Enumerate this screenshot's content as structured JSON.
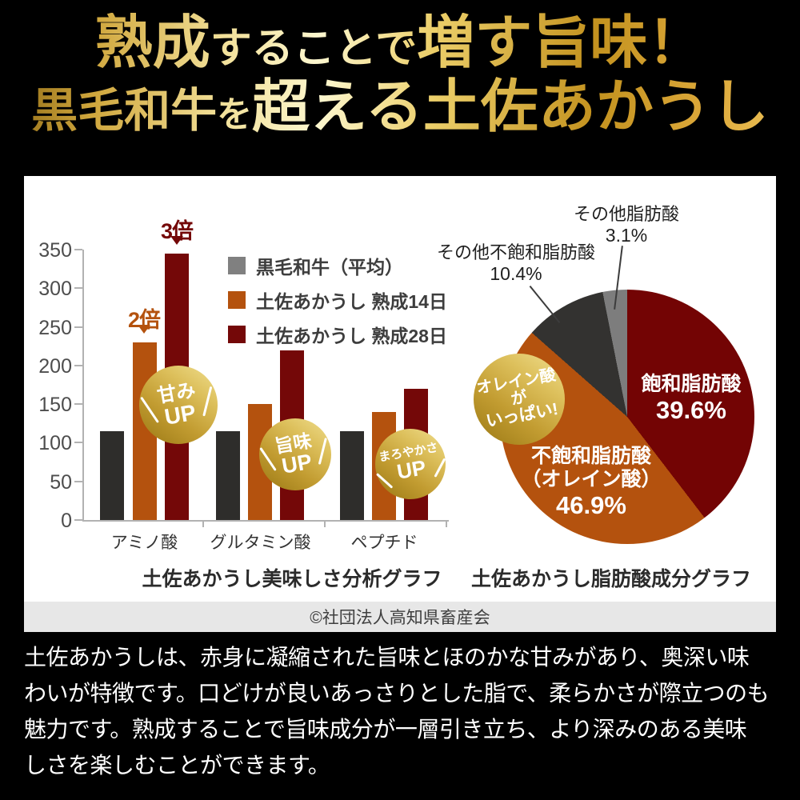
{
  "header": {
    "line1": {
      "seg1": "熟成",
      "seg2": "することで",
      "seg3": "増す旨味！"
    },
    "line2": {
      "seg1": "黒毛和牛",
      "seg2": "を",
      "seg3": "超える土佐あかうし"
    }
  },
  "chart_data": [
    {
      "type": "bar",
      "title": "土佐あかうし美味しさ分析グラフ",
      "categories": [
        "アミノ酸",
        "グルタミン酸",
        "ペプチド"
      ],
      "series": [
        {
          "name": "黒毛和牛（平均）",
          "legend_color": "#808080",
          "bar_color": "#2e2d2b",
          "values": [
            115,
            115,
            115
          ]
        },
        {
          "name": "土佐あかうし 熟成14日",
          "legend_color": "#b4520e",
          "bar_color": "#b4520e",
          "values": [
            230,
            150,
            140
          ]
        },
        {
          "name": "土佐あかうし 熟成28日",
          "legend_color": "#740808",
          "bar_color": "#740808",
          "values": [
            345,
            220,
            170
          ]
        }
      ],
      "ylim": [
        0,
        350
      ],
      "yticks": [
        0,
        50,
        100,
        150,
        200,
        250,
        300,
        350
      ],
      "grid": false,
      "legend_position": "top-right",
      "annotations": [
        {
          "text": "2倍",
          "target": "アミノ酸 熟成14日",
          "color": "#b4520e"
        },
        {
          "text": "3倍",
          "target": "アミノ酸 熟成28日",
          "color": "#740808"
        }
      ]
    },
    {
      "type": "pie",
      "title": "土佐あかうし脂肪酸成分グラフ",
      "start_angle": "top",
      "direction": "clockwise",
      "slices": [
        {
          "label": "飽和脂肪酸",
          "value": 39.6,
          "color": "#730404"
        },
        {
          "label": "不飽和脂肪酸（オレイン酸）",
          "value": 46.9,
          "color": "#b4520e"
        },
        {
          "label": "その他不飽和脂肪酸",
          "value": 10.4,
          "color": "#333230"
        },
        {
          "label": "その他脂肪酸",
          "value": 3.1,
          "color": "#7d7d7d"
        }
      ]
    }
  ],
  "pie_labels": {
    "saturated": {
      "line1": "飽和脂肪酸",
      "line2": "39.6%"
    },
    "unsaturated": {
      "line1": "不飽和脂肪酸",
      "line2": "（オレイン酸）",
      "line3": "46.9%"
    },
    "other_unsaturated": {
      "line1": "その他不飽和脂肪酸",
      "line2": "10.4%"
    },
    "other": {
      "line1": "その他脂肪酸",
      "line2": "3.1%"
    }
  },
  "badges": {
    "amami": {
      "line1": "甘み",
      "line2": "UP"
    },
    "umami": {
      "line1": "旨味",
      "line2": "UP"
    },
    "maroyakasa": {
      "line1": "まろやかさ",
      "line2": "UP"
    },
    "oleic": {
      "line1": "オレイン酸が",
      "line2": "いっぱい!"
    }
  },
  "attribution": {
    "text": "©社団法人高知県畜産会"
  },
  "footer": {
    "lines": [
      "土佐あかうしは、赤身に凝縮された旨味とほのかな甘みがあり、奥深い味",
      "わいが特徴です。口どけが良いあっさりとした脂で、柔らかさが際立つのも",
      "魅力です。熟成することで旨味成分が一層引き立ち、より深みのある美味",
      "しさを楽しむことができます。"
    ]
  },
  "colors": {
    "page_background": "#000000",
    "panel_background": "#ffffff",
    "attribution_background": "#e7e7e7",
    "axis": "#b2b2b2",
    "gold_badge": [
      "#f0df90",
      "#9a7814"
    ],
    "gold_title": [
      "#fdf7cf",
      "#c3921f"
    ]
  }
}
